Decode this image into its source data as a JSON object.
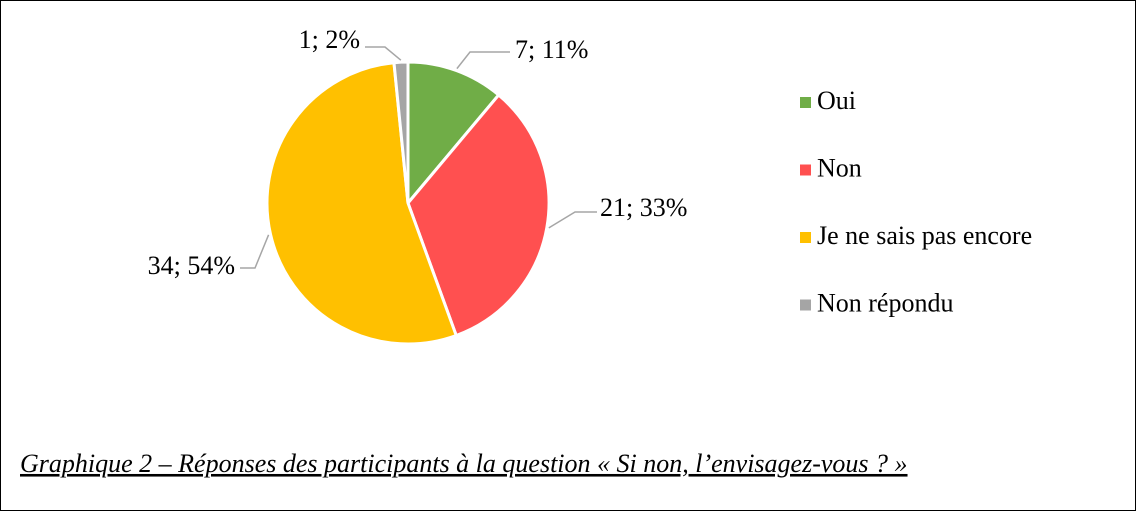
{
  "chart_data": {
    "type": "pie",
    "categories": [
      "Oui",
      "Non",
      "Je ne sais pas encore",
      "Non répondu"
    ],
    "values": [
      7,
      21,
      34,
      1
    ],
    "value_labels": [
      "7; 11%",
      "21; 33%",
      "34; 54%",
      "1; 2%"
    ],
    "colors": [
      "#70ad47",
      "#ff5050",
      "#ffc000",
      "#a5a5a5"
    ],
    "legend": "right",
    "caption": "Graphique 2 – Réponses des participants à la question « Si non, l’envisagez-vous ? »"
  }
}
